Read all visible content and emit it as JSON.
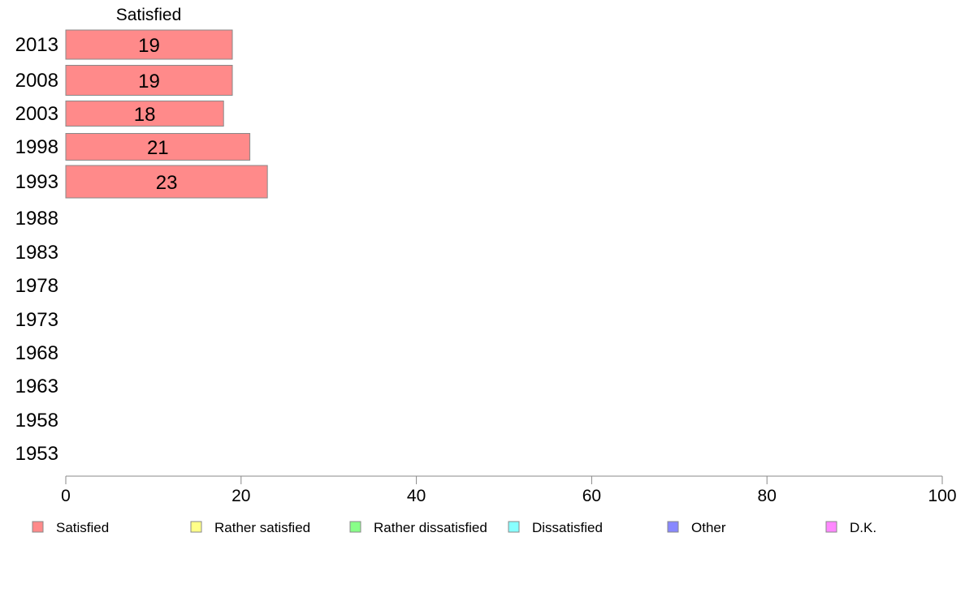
{
  "chart_data": {
    "type": "bar",
    "orientation": "horizontal",
    "stacked": true,
    "categories": [
      "2013",
      "2008",
      "2003",
      "1998",
      "1993",
      "1988",
      "1983",
      "1978",
      "1973",
      "1968",
      "1963",
      "1958",
      "1953"
    ],
    "series": [
      {
        "name": "Satisfied",
        "color": "#ff8a8a",
        "values": [
          19,
          19,
          18,
          21,
          23,
          null,
          null,
          null,
          null,
          null,
          null,
          null,
          null
        ]
      },
      {
        "name": "Rather satisfied",
        "color": "#ffff88",
        "values": [
          null,
          null,
          null,
          null,
          null,
          null,
          null,
          null,
          null,
          null,
          null,
          null,
          null
        ]
      },
      {
        "name": "Rather dissatisfied",
        "color": "#88ff88",
        "values": [
          null,
          null,
          null,
          null,
          null,
          null,
          null,
          null,
          null,
          null,
          null,
          null,
          null
        ]
      },
      {
        "name": "Dissatisfied",
        "color": "#88ffff",
        "values": [
          null,
          null,
          null,
          null,
          null,
          null,
          null,
          null,
          null,
          null,
          null,
          null,
          null
        ]
      },
      {
        "name": "Other",
        "color": "#8888ff",
        "values": [
          null,
          null,
          null,
          null,
          null,
          null,
          null,
          null,
          null,
          null,
          null,
          null,
          null
        ]
      },
      {
        "name": "D.K.",
        "color": "#ff88ff",
        "values": [
          null,
          null,
          null,
          null,
          null,
          null,
          null,
          null,
          null,
          null,
          null,
          null,
          null
        ]
      }
    ],
    "series_header": "Satisfied",
    "xlim": [
      0,
      100
    ],
    "xticks": [
      "0",
      "20",
      "40",
      "60",
      "80",
      "100"
    ],
    "xlabel": "",
    "ylabel": "",
    "title": "",
    "grid": false,
    "legend": "bottom"
  }
}
